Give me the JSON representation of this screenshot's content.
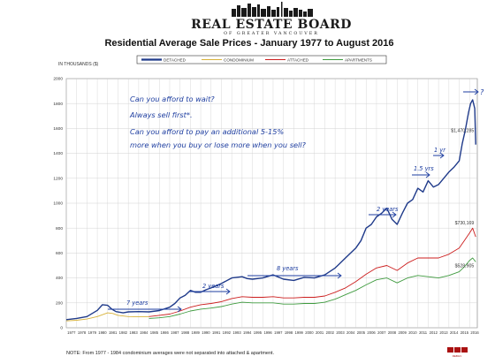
{
  "logo": {
    "main": "REAL ESTATE BOARD",
    "sub": "OF GREATER VANCOUVER"
  },
  "footer_logo": "REBGV",
  "note": "NOTE: From 1977 - 1984 condominium averages were not separated into attached & apartment.",
  "annotations": {
    "line1": "Can you afford to wait?",
    "line2": "Always sell first*.",
    "line3": "Can you afford to pay an additional 5-15%",
    "line4": "more when you buy or lose more when you sell?",
    "plateau_1": "7 years",
    "plateau_2": "2 years",
    "plateau_3": "8 years",
    "plateau_4": "2 years",
    "plateau_5": "1.5 yrs",
    "plateau_6": "1 yr",
    "question": "?"
  },
  "chart_data": {
    "type": "line",
    "title": "Residential Average Sale Prices  -  January 1977 to August 2016",
    "ylabel": "IN THOUSANDS ($)",
    "xlabel": "",
    "ylim": [
      0,
      2000
    ],
    "yticks": [
      0,
      200,
      400,
      600,
      800,
      1000,
      1200,
      1400,
      1600,
      1800,
      2000
    ],
    "xlim": [
      1977,
      2016.75
    ],
    "xticks": [
      "1977",
      "1978",
      "1979",
      "1980",
      "1981",
      "1982",
      "1983",
      "1984",
      "1985",
      "1986",
      "1987",
      "1988",
      "1989",
      "1990",
      "1991",
      "1992",
      "1993",
      "1994",
      "1995",
      "1996",
      "1997",
      "1998",
      "1999",
      "2000",
      "2001",
      "2002",
      "2003",
      "2004",
      "2005",
      "2006",
      "2007",
      "2008",
      "2009",
      "2010",
      "2011",
      "2012",
      "2013",
      "2014",
      "2015",
      "2016"
    ],
    "grid": true,
    "legend_position": "top",
    "data_labels": [
      {
        "text": "$1,470,285",
        "series": "DETACHED",
        "x": 2016.6,
        "y": 1470
      },
      {
        "text": "$730,169",
        "series": "ATTACHED",
        "x": 2016.6,
        "y": 730
      },
      {
        "text": "$528,905",
        "series": "APARTMENTS",
        "x": 2016.6,
        "y": 529
      }
    ],
    "series": [
      {
        "name": "DETACHED",
        "color": "#1f3a8a",
        "x": [
          1977,
          1978,
          1979,
          1980,
          1980.5,
          1981,
          1981.4,
          1981.8,
          1982.5,
          1983,
          1984,
          1985,
          1986,
          1987,
          1987.5,
          1988,
          1988.5,
          1989,
          1989.5,
          1990,
          1990.5,
          1991,
          1992,
          1993,
          1994,
          1994.5,
          1995,
          1996,
          1997,
          1998,
          1999,
          2000,
          2001,
          2002,
          2003,
          2004,
          2005,
          2005.5,
          2006,
          2006.5,
          2007,
          2007.5,
          2008,
          2008.5,
          2009,
          2009.5,
          2010,
          2010.5,
          2011,
          2011.5,
          2012,
          2012.5,
          2013,
          2013.5,
          2014,
          2014.5,
          2015,
          2015.3,
          2015.6,
          2015.9,
          2016.1,
          2016.3,
          2016.5,
          2016.6
        ],
        "y": [
          65,
          75,
          90,
          140,
          185,
          180,
          150,
          130,
          120,
          128,
          130,
          128,
          138,
          165,
          195,
          240,
          260,
          300,
          285,
          285,
          305,
          320,
          355,
          400,
          410,
          395,
          390,
          400,
          425,
          390,
          380,
          405,
          400,
          425,
          480,
          560,
          640,
          700,
          800,
          830,
          890,
          920,
          960,
          870,
          830,
          920,
          1000,
          1030,
          1120,
          1090,
          1180,
          1130,
          1150,
          1200,
          1250,
          1290,
          1340,
          1480,
          1590,
          1730,
          1800,
          1830,
          1760,
          1470
        ]
      },
      {
        "name": "CONDOMINIUM",
        "color": "#d8b23a",
        "x": [
          1977,
          1978,
          1979,
          1980,
          1981,
          1981.5,
          1982,
          1983,
          1984,
          1985
        ],
        "y": [
          55,
          60,
          70,
          90,
          120,
          115,
          100,
          90,
          88,
          88
        ]
      },
      {
        "name": "ATTACHED",
        "color": "#cc1d1d",
        "x": [
          1985,
          1986,
          1987,
          1988,
          1989,
          1990,
          1991,
          1992,
          1993,
          1994,
          1995,
          1996,
          1997,
          1998,
          1999,
          2000,
          2001,
          2002,
          2003,
          2004,
          2005,
          2006,
          2007,
          2008,
          2009,
          2010,
          2011,
          2012,
          2013,
          2014,
          2015,
          2015.5,
          2016,
          2016.3,
          2016.6
        ],
        "y": [
          90,
          100,
          110,
          135,
          165,
          185,
          195,
          210,
          235,
          250,
          245,
          245,
          250,
          240,
          240,
          245,
          245,
          255,
          285,
          320,
          370,
          430,
          480,
          500,
          460,
          520,
          560,
          560,
          560,
          590,
          640,
          700,
          760,
          800,
          730
        ]
      },
      {
        "name": "APARTMENTS",
        "color": "#3f9b3f",
        "x": [
          1985,
          1986,
          1987,
          1988,
          1989,
          1990,
          1991,
          1992,
          1993,
          1994,
          1995,
          1996,
          1997,
          1998,
          1999,
          2000,
          2001,
          2002,
          2003,
          2004,
          2005,
          2006,
          2007,
          2008,
          2009,
          2010,
          2011,
          2012,
          2013,
          2014,
          2015,
          2015.5,
          2016,
          2016.3,
          2016.6
        ],
        "y": [
          75,
          80,
          90,
          110,
          135,
          150,
          158,
          170,
          190,
          205,
          200,
          200,
          200,
          190,
          190,
          195,
          195,
          205,
          230,
          265,
          300,
          345,
          385,
          400,
          360,
          400,
          420,
          410,
          400,
          420,
          450,
          490,
          540,
          560,
          529
        ]
      }
    ]
  }
}
